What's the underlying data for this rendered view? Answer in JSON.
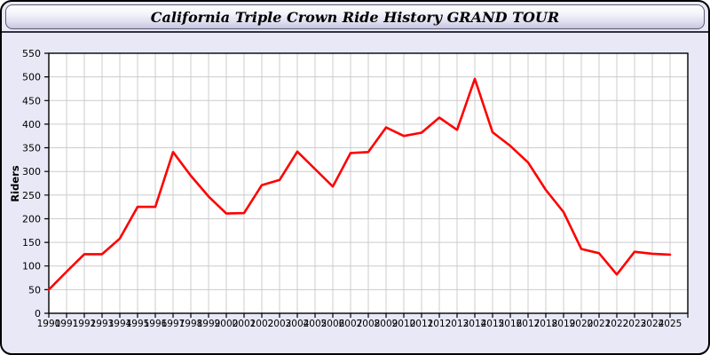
{
  "title": "California Triple Crown Ride History GRAND TOUR",
  "colors": {
    "window_bg": "#e8e8f7",
    "plot_bg": "#ffffff",
    "grid": "#cccccc",
    "axis": "#000000",
    "line": "#ff0000",
    "title_gradient_top": "#ffffff",
    "title_gradient_bottom": "#c5c5e2"
  },
  "chart_data": {
    "type": "line",
    "title": "California Triple Crown Ride History GRAND TOUR",
    "xlabel": "",
    "ylabel": "Riders",
    "ylim": [
      0,
      550
    ],
    "ytick_step": 50,
    "grid": true,
    "legend_position": "none",
    "x": [
      1990,
      1991,
      1992,
      1993,
      1994,
      1995,
      1996,
      1997,
      1998,
      1999,
      2000,
      2001,
      2002,
      2003,
      2004,
      2005,
      2006,
      2007,
      2008,
      2009,
      2010,
      2011,
      2012,
      2013,
      2014,
      2015,
      2016,
      2017,
      2018,
      2019,
      2020,
      2021,
      2022,
      2023,
      2024,
      2025
    ],
    "series": [
      {
        "name": "Riders",
        "color": "#ff0000",
        "values": [
          50,
          88,
          125,
          125,
          158,
          225,
          225,
          341,
          291,
          247,
          211,
          212,
          271,
          282,
          342,
          305,
          268,
          339,
          341,
          393,
          375,
          382,
          414,
          388,
          496,
          383,
          354,
          319,
          261,
          214,
          136,
          127,
          82,
          130,
          126,
          124
        ]
      }
    ]
  }
}
